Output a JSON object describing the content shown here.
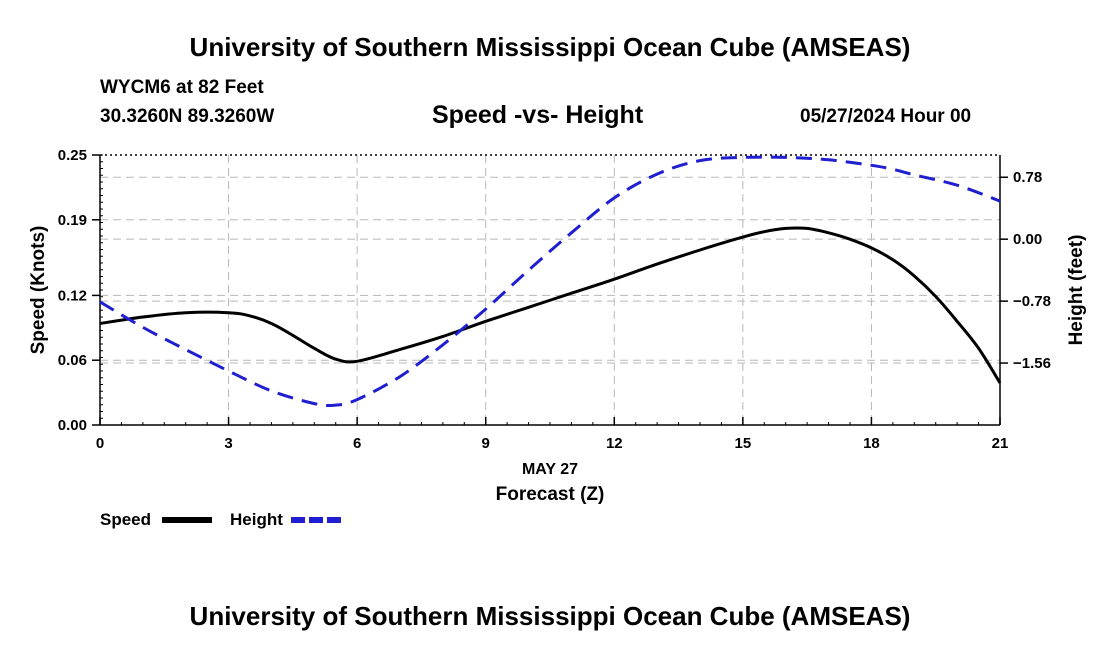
{
  "header": {
    "title": "University of Southern Mississippi Ocean Cube (AMSEAS)",
    "station": "WYCM6 at 82 Feet",
    "coords": "30.3260N  89.3260W",
    "datetime": "05/27/2024 Hour 00",
    "footer_title": "University of Southern Mississippi Ocean Cube (AMSEAS)"
  },
  "colors": {
    "speed": "#000000",
    "height": "#1f1fd1",
    "grid": "#b8b8b8"
  },
  "chart_data": {
    "type": "line",
    "title": "Speed -vs- Height",
    "xlabel": "Forecast (Z)",
    "date_label": "MAY 27",
    "ylabel": "Speed (Knots)",
    "y2label": "Height (feet)",
    "xlim": [
      0,
      21
    ],
    "ylim": [
      0,
      0.25
    ],
    "y2lim": [
      -2.34,
      1.06
    ],
    "x_ticks": [
      "0",
      "3",
      "6",
      "9",
      "12",
      "15",
      "18",
      "21"
    ],
    "y_ticks": [
      "0.00",
      "0.06",
      "0.12",
      "0.19",
      "0.25"
    ],
    "y2_ticks": [
      "0.78",
      "0.00",
      "-0.78",
      "-1.56"
    ],
    "series": [
      {
        "name": "Speed",
        "axis": "left",
        "style": "solid",
        "x": [
          0,
          1,
          2,
          3,
          3.5,
          4,
          4.5,
          5,
          5.5,
          6,
          7,
          8,
          9,
          10,
          11,
          12,
          13,
          14,
          15,
          15.5,
          16,
          16.5,
          17,
          17.5,
          18,
          18.5,
          19,
          19.5,
          20,
          20.5,
          21
        ],
        "values": [
          0.094,
          0.1,
          0.104,
          0.104,
          0.101,
          0.094,
          0.083,
          0.071,
          0.061,
          0.059,
          0.07,
          0.082,
          0.096,
          0.109,
          0.122,
          0.135,
          0.149,
          0.162,
          0.174,
          0.179,
          0.182,
          0.182,
          0.178,
          0.172,
          0.164,
          0.153,
          0.138,
          0.119,
          0.096,
          0.071,
          0.039
        ]
      },
      {
        "name": "Height",
        "axis": "right",
        "style": "dashed",
        "x": [
          0,
          1,
          2,
          3,
          4,
          5,
          5.5,
          6,
          7,
          8,
          9,
          10,
          11,
          12,
          13,
          14,
          15,
          16,
          17,
          18,
          18.5,
          19,
          20,
          21
        ],
        "values": [
          -0.79,
          -1.11,
          -1.39,
          -1.66,
          -1.91,
          -2.07,
          -2.09,
          -2.02,
          -1.73,
          -1.33,
          -0.88,
          -0.39,
          0.08,
          0.52,
          0.82,
          0.99,
          1.03,
          1.03,
          1.0,
          0.93,
          0.88,
          0.81,
          0.68,
          0.48
        ]
      }
    ],
    "legend": [
      {
        "label": "Speed",
        "style": "solid"
      },
      {
        "label": "Height",
        "style": "dashed"
      }
    ]
  }
}
